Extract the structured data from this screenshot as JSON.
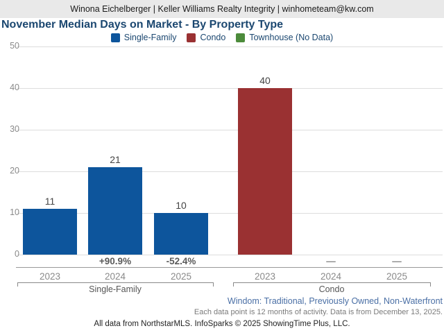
{
  "header": {
    "text": "Winona Eichelberger | Keller Williams Realty Integrity | winhometeam@kw.com"
  },
  "title": "November Median Days on Market - By Property Type",
  "legend": {
    "items": [
      {
        "label": "Single-Family",
        "color": "#0d559c"
      },
      {
        "label": "Condo",
        "color": "#9a3132"
      },
      {
        "label": "Townhouse (No Data)",
        "color": "#4c8b3b"
      }
    ]
  },
  "chart_data": {
    "type": "bar",
    "title": "November Median Days on Market - By Property Type",
    "xlabel": "",
    "ylabel": "",
    "ylim": [
      0,
      50
    ],
    "yticks": [
      0,
      10,
      20,
      30,
      40,
      50
    ],
    "grid": true,
    "legend_position": "top",
    "no_data_marker": "—",
    "groups": [
      {
        "name": "Single-Family",
        "color": "#0d559c",
        "categories": [
          "2023",
          "2024",
          "2025"
        ],
        "values": [
          11,
          21,
          10
        ],
        "pct_change": [
          null,
          "+90.9%",
          "-52.4%"
        ]
      },
      {
        "name": "Condo",
        "color": "#9a3132",
        "categories": [
          "2023",
          "2024",
          "2025"
        ],
        "values": [
          40,
          null,
          null
        ],
        "pct_change": [
          null,
          null,
          null
        ]
      },
      {
        "name": "Townhouse",
        "color": "#4c8b3b",
        "categories": [],
        "values": [],
        "note": "No Data"
      }
    ]
  },
  "footer": {
    "filters": "Windom: Traditional, Previously Owned, Non-Waterfront",
    "note": "Each data point is 12 months of activity. Data is from December 13, 2025.",
    "credit": "All data from NorthstarMLS. InfoSparks © 2025 ShowingTime Plus, LLC."
  }
}
